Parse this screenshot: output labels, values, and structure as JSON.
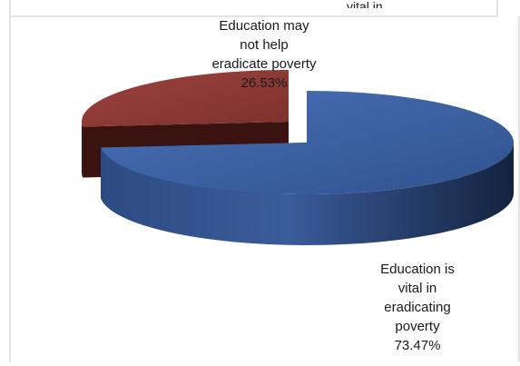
{
  "chart_data": {
    "type": "pie",
    "style": "3d-exploded",
    "slices": [
      {
        "label": "Education is vital in eradicating poverty",
        "value": 73.47,
        "percent_label": "73.47%",
        "color": "#3f62a3"
      },
      {
        "label": "Education may not help eradicate poverty",
        "value": 26.53,
        "percent_label": "26.53%",
        "color": "#8e3a37"
      }
    ],
    "title": "",
    "legend": "none"
  },
  "clipped_top_text": "vital in"
}
